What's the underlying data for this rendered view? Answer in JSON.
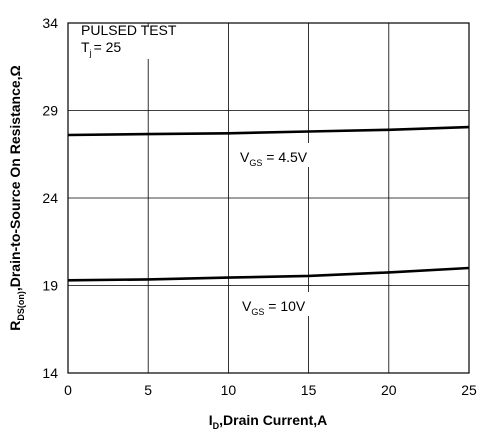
{
  "chart_data": {
    "type": "line",
    "xlabel": {
      "main": "I",
      "sub": "D",
      "rest": ",Drain Current,A"
    },
    "ylabel": {
      "main": "R",
      "sub": "DS(on)",
      "rest": ",Drain-to-Source On Resistance,Ω"
    },
    "xlim": [
      0,
      25
    ],
    "ylim": [
      14,
      34
    ],
    "xticks": [
      0,
      5,
      10,
      15,
      20,
      25
    ],
    "yticks": [
      14,
      19,
      24,
      29,
      34
    ],
    "grid": true,
    "test_note": {
      "line1": "PULSED TEST",
      "line2_main": "T",
      "line2_sub": "j",
      "line2_rest": "= 25"
    },
    "series": [
      {
        "label_main": "V",
        "label_sub": "GS",
        "label_rest": " = 4.5V",
        "x": [
          0,
          5,
          10,
          15,
          20,
          25
        ],
        "y": [
          27.6,
          27.65,
          27.7,
          27.8,
          27.9,
          28.05
        ]
      },
      {
        "label_main": "V",
        "label_sub": "GS",
        "label_rest": " = 10V",
        "x": [
          0,
          5,
          10,
          15,
          20,
          25
        ],
        "y": [
          19.3,
          19.35,
          19.45,
          19.55,
          19.75,
          20.0
        ]
      }
    ]
  }
}
